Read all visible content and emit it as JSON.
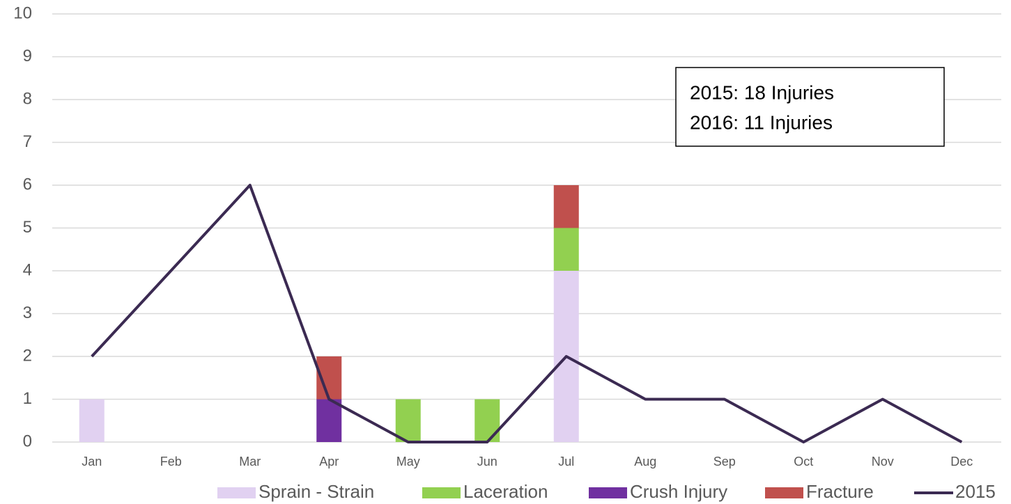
{
  "chart_data": {
    "type": "bar",
    "stacked": true,
    "categories": [
      "Jan",
      "Feb",
      "Mar",
      "Apr",
      "May",
      "Jun",
      "Jul",
      "Aug",
      "Sep",
      "Oct",
      "Nov",
      "Dec"
    ],
    "series": [
      {
        "name": "Sprain - Strain",
        "color": "#e1d1f1",
        "values": [
          1,
          0,
          0,
          0,
          0,
          0,
          4,
          0,
          0,
          0,
          0,
          0
        ]
      },
      {
        "name": "Laceration",
        "color": "#92d050",
        "values": [
          0,
          0,
          0,
          0,
          1,
          1,
          1,
          0,
          0,
          0,
          0,
          0
        ]
      },
      {
        "name": "Crush Injury",
        "color": "#7030a0",
        "values": [
          0,
          0,
          0,
          1,
          0,
          0,
          0,
          0,
          0,
          0,
          0,
          0
        ]
      },
      {
        "name": "Fracture",
        "color": "#c0504d",
        "values": [
          0,
          0,
          0,
          1,
          0,
          0,
          1,
          0,
          0,
          0,
          0,
          0
        ]
      },
      {
        "name": "2015",
        "type": "line",
        "color": "#3b2a52",
        "values": [
          2,
          4,
          6,
          1,
          0,
          0,
          2,
          1,
          1,
          0,
          1,
          0
        ]
      }
    ],
    "annotation": [
      "2015: 18 Injuries",
      "2016: 11 Injuries"
    ],
    "ylim": [
      0,
      10
    ],
    "yticks": [
      0,
      1,
      2,
      3,
      4,
      5,
      6,
      7,
      8,
      9,
      10
    ],
    "grid": true,
    "legend": "bottom"
  }
}
